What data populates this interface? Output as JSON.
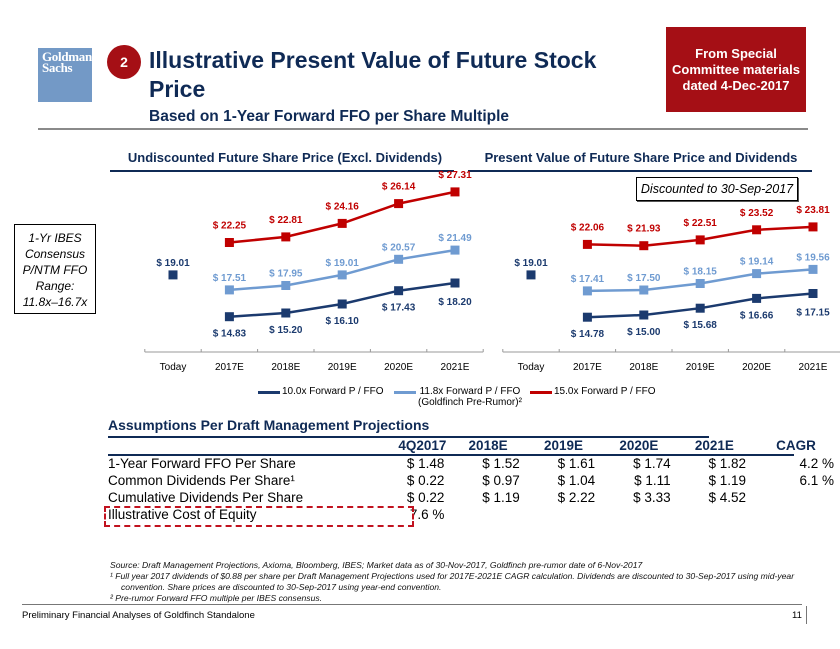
{
  "header": {
    "logo_line1": "Goldman",
    "logo_line2": "Sachs",
    "step_number": "2",
    "title": "Illustrative Present Value of Future Stock Price",
    "subtitle": "Based on 1-Year Forward FFO per Share Multiple",
    "source_badge": [
      "From Special",
      "Committee materials",
      "dated 4-Dec-2017"
    ]
  },
  "range_box": [
    "1-Yr IBES",
    "Consensus",
    "P/NTM FFO",
    "Range:",
    "11.8x–16.7x"
  ],
  "discount_box": "Discounted to 30-Sep-2017",
  "colors": {
    "navy": "#1b3a6e",
    "light_blue": "#6f9bd1",
    "red": "#c00000",
    "title_navy": "#0f2a55",
    "badge_red": "#a50f15"
  },
  "chart_data": [
    {
      "type": "line",
      "title": "Undiscounted Future Share Price (Excl. Dividends)",
      "categories": [
        "Today",
        "2017E",
        "2018E",
        "2019E",
        "2020E",
        "2021E"
      ],
      "today_value": 19.01,
      "today_label": "$ 19.01",
      "series": [
        {
          "name": "10.0x Forward P / FFO",
          "values": [
            null,
            14.83,
            15.2,
            16.1,
            17.43,
            18.2
          ],
          "labels": [
            "",
            "$ 14.83",
            "$ 15.20",
            "$ 16.10",
            "$ 17.43",
            "$ 18.20"
          ]
        },
        {
          "name": "11.8x Forward P / FFO (Goldfinch Pre-Rumor)²",
          "values": [
            null,
            17.51,
            17.95,
            19.01,
            20.57,
            21.49
          ],
          "labels": [
            "",
            "$ 17.51",
            "$ 17.95",
            "$ 19.01",
            "$ 20.57",
            "$ 21.49"
          ]
        },
        {
          "name": "15.0x Forward P / FFO",
          "values": [
            null,
            22.25,
            22.81,
            24.16,
            26.14,
            27.31
          ],
          "labels": [
            "",
            "$ 22.25",
            "$ 22.81",
            "$ 24.16",
            "$ 26.14",
            "$ 27.31"
          ]
        }
      ],
      "ylim": [
        12,
        29
      ],
      "grid": false
    },
    {
      "type": "line",
      "title": "Present Value of Future Share Price and Dividends",
      "categories": [
        "Today",
        "2017E",
        "2018E",
        "2019E",
        "2020E",
        "2021E"
      ],
      "today_value": 19.01,
      "today_label": "$ 19.01",
      "series": [
        {
          "name": "10.0x Forward P / FFO",
          "values": [
            null,
            14.78,
            15.0,
            15.68,
            16.66,
            17.15
          ],
          "labels": [
            "",
            "$ 14.78",
            "$ 15.00",
            "$ 15.68",
            "$ 16.66",
            "$ 17.15"
          ]
        },
        {
          "name": "11.8x Forward P / FFO (Goldfinch Pre-Rumor)²",
          "values": [
            null,
            17.41,
            17.5,
            18.15,
            19.14,
            19.56
          ],
          "labels": [
            "",
            "$ 17.41",
            "$ 17.50",
            "$ 18.15",
            "$ 19.14",
            "$ 19.56"
          ]
        },
        {
          "name": "15.0x Forward P / FFO",
          "values": [
            null,
            22.06,
            21.93,
            22.51,
            23.52,
            23.81
          ],
          "labels": [
            "",
            "$ 22.06",
            "$ 21.93",
            "$ 22.51",
            "$ 23.52",
            "$ 23.81"
          ]
        }
      ],
      "ylim": [
        12,
        29
      ],
      "grid": false
    }
  ],
  "legend": [
    {
      "label": "10.0x Forward P / FFO",
      "label2": ""
    },
    {
      "label": "11.8x Forward P / FFO",
      "label2": "(Goldfinch Pre-Rumor)²"
    },
    {
      "label": "15.0x Forward P / FFO",
      "label2": ""
    }
  ],
  "assumptions": {
    "title": "Assumptions Per Draft Management Projections",
    "columns": [
      "",
      "4Q2017",
      "2018E",
      "2019E",
      "2020E",
      "2021E",
      "CAGR"
    ],
    "rows": [
      {
        "label": "1-Year Forward FFO Per Share",
        "cells": [
          "$ 1.48",
          "$ 1.52",
          "$ 1.61",
          "$ 1.74",
          "$ 1.82",
          "4.2 %"
        ]
      },
      {
        "label": "Common Dividends Per Share¹",
        "cells": [
          "$ 0.22",
          "$ 0.97",
          "$ 1.04",
          "$ 1.11",
          "$ 1.19",
          "6.1 %"
        ]
      },
      {
        "label": "Cumulative Dividends Per Share",
        "cells": [
          "$ 0.22",
          "$ 1.19",
          "$ 2.22",
          "$ 3.33",
          "$ 4.52",
          ""
        ]
      },
      {
        "label": "Illustrative Cost of Equity",
        "cells": [
          "7.6 %",
          "",
          "",
          "",
          "",
          ""
        ]
      }
    ]
  },
  "footnotes": {
    "source": "Source: Draft Management Projections, Axioma, Bloomberg, IBES; Market data as of 30-Nov-2017, Goldfinch pre-rumor date of 6-Nov-2017",
    "note1": "¹ Full year 2017 dividends of $0.88 per share per Draft Management Projections used for 2017E-2021E CAGR calculation. Dividends are discounted to 30-Sep-2017 using mid-year",
    "note1b": "convention. Share prices are discounted to 30-Sep-2017 using year-end convention.",
    "note2": "² Pre-rumor Forward FFO multiple per IBES consensus."
  },
  "footer": {
    "text": "Preliminary Financial Analyses of Goldfinch Standalone",
    "page": "11"
  }
}
